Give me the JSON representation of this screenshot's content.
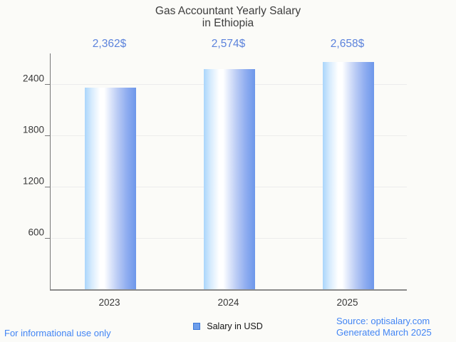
{
  "title": "Gas Accountant Yearly Salary in Ethiopia",
  "title_lines": [
    "Gas Accountant Yearly Salary",
    "in Ethiopia"
  ],
  "legend": {
    "label": "Salary in USD",
    "marker_color": "#6d9eeb",
    "marker_border": "#3c78d8"
  },
  "footer": {
    "left_note": "For informational use only",
    "source_line1": "Source: optisalary.com",
    "source_line2": "Generated March 2025"
  },
  "colors": {
    "background": "#fbfbf8",
    "title_text": "#3d3d3d",
    "axis_text": "#383838",
    "value_label_text": "#5c83dc",
    "footer_link": "#4285f4",
    "gridline": "#ececec",
    "axis_line": "#8a8a8a",
    "bar_gradient_left": "#aad5fb",
    "bar_gradient_middle": "#ffffff",
    "bar_gradient_right": "#6d97ea"
  },
  "chart_data": {
    "type": "bar",
    "title": "Gas Accountant Yearly Salary in Ethiopia",
    "categories": [
      "2023",
      "2024",
      "2025"
    ],
    "values": [
      2362,
      2574,
      2658
    ],
    "value_labels": [
      "2,362$",
      "2,574$",
      "2,658$"
    ],
    "series": [
      {
        "name": "Salary in USD",
        "values": [
          2362,
          2574,
          2658
        ]
      }
    ],
    "xlabel": "",
    "ylabel": "",
    "yticks": [
      600,
      1200,
      1800,
      2400
    ],
    "ylim": [
      0,
      2775
    ],
    "grid": true,
    "legend_entries": [
      "Salary in USD"
    ],
    "legend_position": "bottom",
    "bar_orientation": "vertical"
  }
}
